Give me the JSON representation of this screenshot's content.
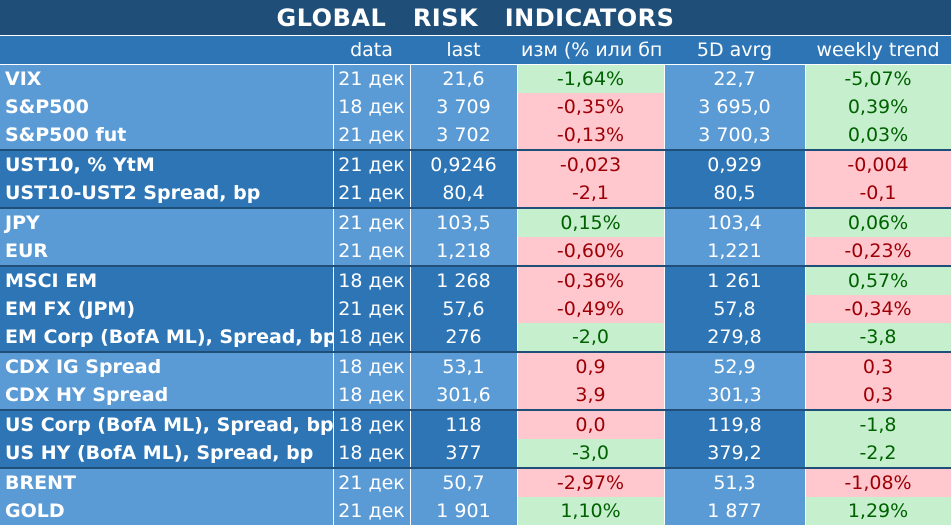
{
  "title_words": [
    "GLOBAL",
    "RISK",
    "INDICATORS"
  ],
  "headers": [
    "",
    "data",
    "last",
    "изм (% или бп)",
    "5D avrg",
    "weekly trend"
  ],
  "colors": {
    "title_bg": "#1f4e79",
    "light_row": "#5b9bd5",
    "dark_row": "#2e75b6",
    "positive_bg": "#c6efce",
    "positive_text": "#006100",
    "negative_bg": "#ffc7ce",
    "negative_text": "#9c0006"
  },
  "rows": [
    {
      "name": "VIX",
      "date": "21 дек",
      "last": "21,6",
      "change": "-1,64%",
      "change_sign": "pos",
      "avg5d": "22,7",
      "weekly": "-5,07%",
      "weekly_sign": "pos",
      "group": 0
    },
    {
      "name": "S&P500",
      "date": "18 дек",
      "last": "3 709",
      "change": "-0,35%",
      "change_sign": "neg",
      "avg5d": "3 695,0",
      "weekly": "0,39%",
      "weekly_sign": "pos",
      "group": 0
    },
    {
      "name": "S&P500 fut",
      "date": "21 дек",
      "last": "3 702",
      "change": "-0,13%",
      "change_sign": "neg",
      "avg5d": "3 700,3",
      "weekly": "0,03%",
      "weekly_sign": "pos",
      "group": 0
    },
    {
      "name": "UST10, % YtM",
      "date": "21 дек",
      "last": "0,9246",
      "change": "-0,023",
      "change_sign": "neg",
      "avg5d": "0,929",
      "weekly": "-0,004",
      "weekly_sign": "neg",
      "group": 1
    },
    {
      "name": "UST10-UST2 Spread, bp",
      "date": "21 дек",
      "last": "80,4",
      "change": "-2,1",
      "change_sign": "neg",
      "avg5d": "80,5",
      "weekly": "-0,1",
      "weekly_sign": "neg",
      "group": 1
    },
    {
      "name": "JPY",
      "date": "21 дек",
      "last": "103,5",
      "change": "0,15%",
      "change_sign": "pos",
      "avg5d": "103,4",
      "weekly": "0,06%",
      "weekly_sign": "pos",
      "group": 2
    },
    {
      "name": "EUR",
      "date": "21 дек",
      "last": "1,218",
      "change": "-0,60%",
      "change_sign": "neg",
      "avg5d": "1,221",
      "weekly": "-0,23%",
      "weekly_sign": "neg",
      "group": 2
    },
    {
      "name": "MSCI EM",
      "date": "18 дек",
      "last": "1 268",
      "change": "-0,36%",
      "change_sign": "neg",
      "avg5d": "1 261",
      "weekly": "0,57%",
      "weekly_sign": "pos",
      "group": 3
    },
    {
      "name": "EM FX (JPM)",
      "date": "21 дек",
      "last": "57,6",
      "change": "-0,49%",
      "change_sign": "neg",
      "avg5d": "57,8",
      "weekly": "-0,34%",
      "weekly_sign": "neg",
      "group": 3
    },
    {
      "name": "EM Corp (BofA ML), Spread, bp",
      "date": "18 дек",
      "last": "276",
      "change": "-2,0",
      "change_sign": "pos",
      "avg5d": "279,8",
      "weekly": "-3,8",
      "weekly_sign": "pos",
      "group": 3
    },
    {
      "name": "CDX IG Spread",
      "date": "18 дек",
      "last": "53,1",
      "change": "0,9",
      "change_sign": "neg",
      "avg5d": "52,9",
      "weekly": "0,3",
      "weekly_sign": "neg",
      "group": 4
    },
    {
      "name": "CDX HY Spread",
      "date": "18 дек",
      "last": "301,6",
      "change": "3,9",
      "change_sign": "neg",
      "avg5d": "301,3",
      "weekly": "0,3",
      "weekly_sign": "neg",
      "group": 4
    },
    {
      "name": "US Corp (BofA ML), Spread, bp",
      "date": "18 дек",
      "last": "118",
      "change": "0,0",
      "change_sign": "neg",
      "avg5d": "119,8",
      "weekly": "-1,8",
      "weekly_sign": "pos",
      "group": 5
    },
    {
      "name": "US HY (BofA ML), Spread, bp",
      "date": "18 дек",
      "last": "377",
      "change": "-3,0",
      "change_sign": "pos",
      "avg5d": "379,2",
      "weekly": "-2,2",
      "weekly_sign": "pos",
      "group": 5
    },
    {
      "name": "BRENT",
      "date": "21 дек",
      "last": "50,7",
      "change": "-2,97%",
      "change_sign": "neg",
      "avg5d": "51,3",
      "weekly": "-1,08%",
      "weekly_sign": "neg",
      "group": 6
    },
    {
      "name": "GOLD",
      "date": "21 дек",
      "last": "1 901",
      "change": "1,10%",
      "change_sign": "pos",
      "avg5d": "1 877",
      "weekly": "1,29%",
      "weekly_sign": "pos",
      "group": 6
    }
  ]
}
